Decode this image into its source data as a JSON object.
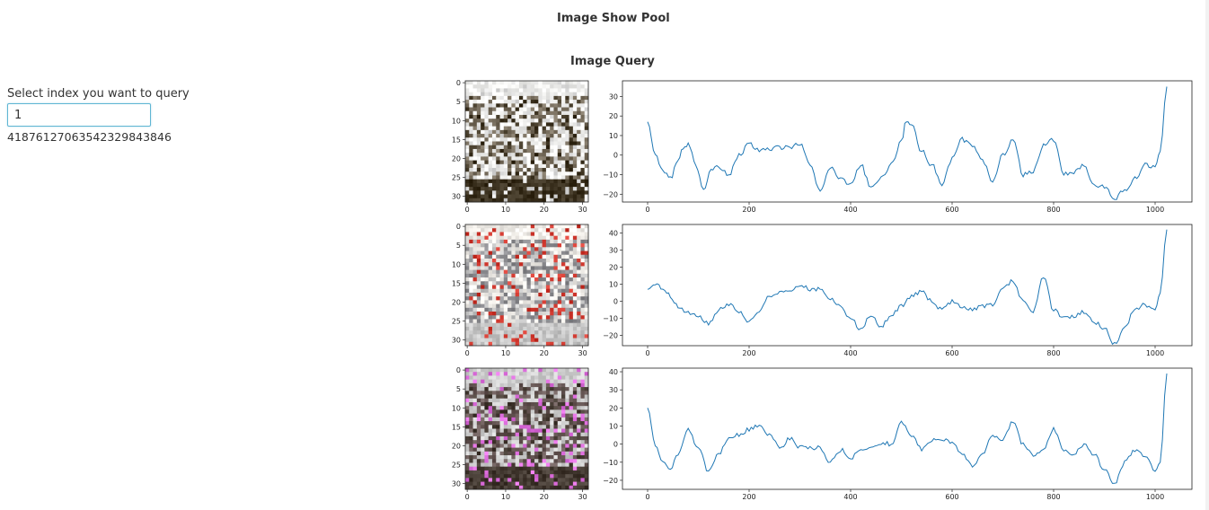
{
  "page": {
    "title": "Image Show Pool"
  },
  "query": {
    "section_title": "Image Query",
    "label": "Select index you want to query",
    "input_value": "1",
    "result_text": "41876127063542329843846"
  },
  "rows": [
    {
      "image": {
        "tint": [
          "#3c3220",
          "#f2f2f0",
          "#7a7060"
        ],
        "accent": "#dedede",
        "x_ticks": [
          "0",
          "10",
          "20",
          "30"
        ],
        "y_ticks": [
          "0",
          "5",
          "10",
          "15",
          "20",
          "25",
          "30"
        ]
      },
      "chart_data": {
        "type": "line",
        "line_color": "#1f77b4",
        "xlim": [
          0,
          1023
        ],
        "ylim": [
          -24,
          38
        ],
        "x_ticks": [
          "0",
          "200",
          "400",
          "600",
          "800",
          "1000"
        ],
        "y_ticks": [
          "30",
          "20",
          "10",
          "0",
          "−10",
          "−20"
        ],
        "y_tick_values": [
          30,
          20,
          10,
          0,
          -10,
          -20
        ],
        "series": [
          {
            "x": [
              0,
              15,
              30,
              45,
              60,
              70,
              80,
              95,
              110,
              125,
              140,
              160,
              180,
              200,
              220,
              240,
              260,
              280,
              300,
              320,
              340,
              360,
              380,
              400,
              420,
              440,
              460,
              480,
              500,
              510,
              520,
              540,
              560,
              580,
              600,
              620,
              640,
              660,
              680,
              700,
              720,
              740,
              760,
              780,
              800,
              820,
              840,
              860,
              880,
              900,
              920,
              940,
              960,
              980,
              1000,
              1010,
              1023
            ],
            "y": [
              17,
              0,
              -8,
              -12,
              -2,
              3,
              6,
              -5,
              -18,
              -8,
              -6,
              -10,
              0,
              6,
              2,
              3,
              4,
              4,
              6,
              -5,
              -19,
              -6,
              -12,
              -15,
              -5,
              -16,
              -12,
              -5,
              7,
              18,
              15,
              2,
              -5,
              -15,
              -2,
              8,
              5,
              -3,
              -14,
              0,
              8,
              -10,
              -8,
              5,
              8,
              -10,
              -9,
              -5,
              -15,
              -16,
              -22,
              -18,
              -12,
              -5,
              -6,
              2,
              35
            ]
          }
        ]
      }
    },
    {
      "image": {
        "tint": [
          "#c8c8c8",
          "#f2efea",
          "#8c8c90"
        ],
        "accent": "#d23a30",
        "x_ticks": [
          "0",
          "10",
          "20",
          "30"
        ],
        "y_ticks": [
          "0",
          "5",
          "10",
          "15",
          "20",
          "25",
          "30"
        ]
      },
      "chart_data": {
        "type": "line",
        "line_color": "#1f77b4",
        "xlim": [
          0,
          1023
        ],
        "ylim": [
          -26,
          45
        ],
        "x_ticks": [
          "0",
          "200",
          "400",
          "600",
          "800",
          "1000"
        ],
        "y_ticks": [
          "40",
          "30",
          "20",
          "10",
          "0",
          "−10",
          "−20"
        ],
        "y_tick_values": [
          40,
          30,
          20,
          10,
          0,
          -10,
          -20
        ],
        "series": [
          {
            "x": [
              0,
              15,
              30,
              45,
              60,
              80,
              100,
              120,
              140,
              160,
              180,
              200,
              220,
              240,
              260,
              280,
              300,
              320,
              340,
              360,
              380,
              400,
              420,
              440,
              460,
              480,
              500,
              520,
              540,
              560,
              580,
              600,
              620,
              640,
              660,
              680,
              700,
              720,
              740,
              760,
              780,
              800,
              820,
              840,
              860,
              880,
              900,
              920,
              940,
              960,
              980,
              1000,
              1010,
              1023
            ],
            "y": [
              7,
              10,
              8,
              3,
              -3,
              -7,
              -9,
              -13,
              -5,
              -2,
              -6,
              -12,
              -5,
              3,
              5,
              6,
              10,
              7,
              7,
              2,
              -3,
              -10,
              -17,
              -8,
              -15,
              -8,
              -3,
              3,
              6,
              0,
              -5,
              0,
              -3,
              -5,
              -3,
              -2,
              8,
              12,
              0,
              -6,
              14,
              -5,
              -10,
              -9,
              -6,
              -12,
              -16,
              -25,
              -15,
              -5,
              -2,
              -5,
              5,
              42
            ]
          }
        ]
      }
    },
    {
      "image": {
        "tint": [
          "#463c34",
          "#d0d0d0",
          "#6a5a58"
        ],
        "accent": "#e070e0",
        "x_ticks": [
          "0",
          "10",
          "20",
          "30"
        ],
        "y_ticks": [
          "0",
          "5",
          "10",
          "15",
          "20",
          "25",
          "30"
        ]
      },
      "chart_data": {
        "type": "line",
        "line_color": "#1f77b4",
        "xlim": [
          0,
          1023
        ],
        "ylim": [
          -25,
          42
        ],
        "x_ticks": [
          "0",
          "200",
          "400",
          "600",
          "800",
          "1000"
        ],
        "y_ticks": [
          "40",
          "30",
          "20",
          "10",
          "0",
          "−10",
          "−20"
        ],
        "y_tick_values": [
          40,
          30,
          20,
          10,
          0,
          -10,
          -20
        ],
        "series": [
          {
            "x": [
              0,
              15,
              30,
              45,
              60,
              80,
              100,
              120,
              140,
              160,
              180,
              200,
              220,
              240,
              260,
              280,
              300,
              320,
              340,
              360,
              380,
              400,
              420,
              440,
              460,
              480,
              500,
              520,
              540,
              560,
              580,
              600,
              620,
              640,
              660,
              680,
              700,
              720,
              740,
              760,
              780,
              800,
              820,
              840,
              860,
              880,
              900,
              920,
              940,
              960,
              980,
              1000,
              1010,
              1023
            ],
            "y": [
              20,
              0,
              -10,
              -14,
              -5,
              8,
              -2,
              -15,
              -5,
              3,
              5,
              8,
              10,
              5,
              -2,
              3,
              -2,
              -2,
              -2,
              -10,
              -3,
              -8,
              -3,
              -2,
              1,
              0,
              12,
              5,
              -3,
              2,
              3,
              0,
              -5,
              -12,
              -5,
              5,
              3,
              12,
              0,
              -6,
              -3,
              8,
              -4,
              -6,
              0,
              -6,
              -14,
              -22,
              -10,
              -3,
              -6,
              -15,
              -10,
              39
            ]
          }
        ]
      }
    }
  ]
}
